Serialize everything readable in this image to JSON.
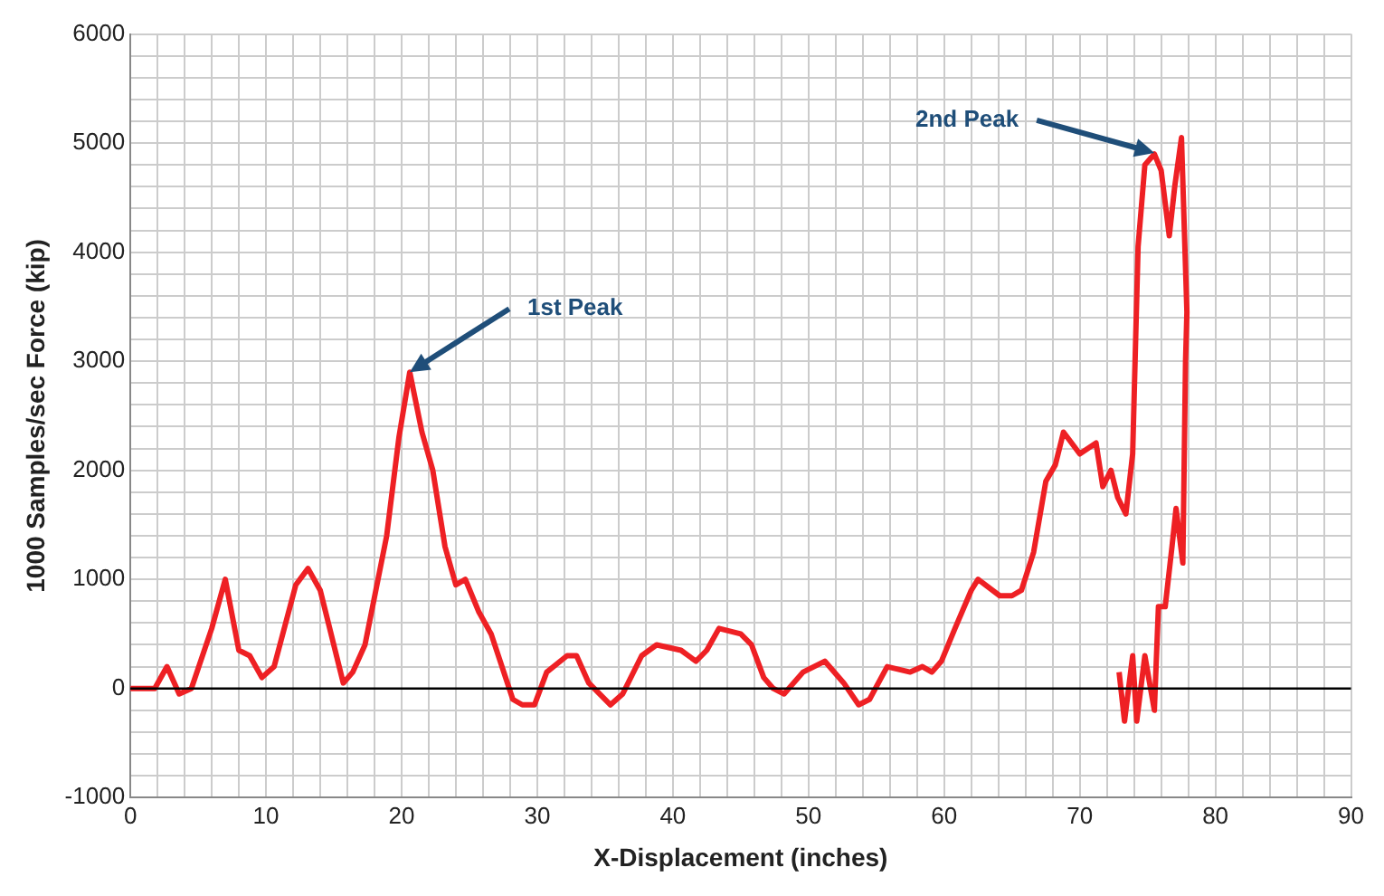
{
  "chart_data": {
    "type": "line",
    "xlabel": "X-Displacement (inches)",
    "ylabel": "1000 Samples/sec Force (kip)",
    "series": [
      {
        "color": "#ee2024",
        "x": [
          0,
          1.8,
          2.7,
          3.6,
          4.5,
          6.0,
          7.0,
          8.0,
          8.8,
          9.7,
          10.6,
          12.2,
          13.1,
          14.0,
          15.7,
          16.4,
          17.3,
          18.9,
          19.8,
          20.6,
          21.5,
          22.3,
          23.2,
          24.0,
          24.7,
          25.7,
          26.6,
          28.2,
          28.9,
          29.8,
          30.7,
          32.2,
          32.9,
          33.8,
          35.4,
          36.3,
          37.7,
          38.8,
          40.6,
          41.7,
          42.5,
          43.4,
          45.0,
          45.8,
          46.7,
          47.4,
          48.2,
          49.6,
          51.2,
          52.6,
          53.7,
          54.5,
          55.8,
          57.5,
          58.4,
          59.1,
          59.8,
          60.8,
          62.0,
          62.5,
          64.1,
          65.0,
          65.7,
          66.6,
          67.5,
          68.2,
          68.8,
          70.0,
          71.2,
          71.7,
          72.3,
          72.8,
          73.4,
          73.9,
          74.3,
          74.8,
          75.5,
          76.0,
          76.6,
          77.0,
          77.5,
          77.9,
          77.8,
          77.6,
          77.1,
          76.8,
          76.3,
          75.8,
          75.5,
          74.8,
          74.2,
          73.9,
          73.3,
          72.9
        ],
        "values": [
          0,
          0,
          200,
          -50,
          0,
          550,
          1000,
          350,
          300,
          100,
          200,
          950,
          1100,
          900,
          50,
          150,
          400,
          1400,
          2300,
          2900,
          2350,
          2000,
          1300,
          950,
          1000,
          700,
          500,
          -100,
          -150,
          -150,
          150,
          300,
          300,
          50,
          -150,
          -50,
          300,
          400,
          350,
          250,
          350,
          550,
          500,
          400,
          100,
          0,
          -50,
          150,
          250,
          50,
          -150,
          -100,
          200,
          150,
          200,
          150,
          250,
          550,
          900,
          1000,
          850,
          850,
          900,
          1250,
          1900,
          2050,
          2350,
          2150,
          2250,
          1850,
          2000,
          1750,
          1600,
          2150,
          4050,
          4800,
          4900,
          4750,
          4150,
          4600,
          5050,
          3450,
          3000,
          1150,
          1650,
          1300,
          750,
          750,
          -200,
          300,
          -300,
          300,
          -300,
          150
        ]
      }
    ],
    "xlim": [
      0,
      90
    ],
    "xticks": [
      0,
      {
        "value": 2,
        "label": null
      },
      {
        "value": 4,
        "label": null
      },
      {
        "value": 6,
        "label": null
      },
      {
        "value": 8,
        "label": null
      },
      10,
      {
        "value": 12,
        "label": null
      },
      {
        "value": 14,
        "label": null
      },
      {
        "value": 16,
        "label": null
      },
      {
        "value": 18,
        "label": null
      },
      20,
      {
        "value": 22,
        "label": null
      },
      {
        "value": 24,
        "label": null
      },
      {
        "value": 26,
        "label": null
      },
      {
        "value": 28,
        "label": null
      },
      30,
      {
        "value": 32,
        "label": null
      },
      {
        "value": 34,
        "label": null
      },
      {
        "value": 36,
        "label": null
      },
      {
        "value": 38,
        "label": null
      },
      40,
      {
        "value": 42,
        "label": null
      },
      {
        "value": 44,
        "label": null
      },
      {
        "value": 46,
        "label": null
      },
      {
        "value": 48,
        "label": null
      },
      50,
      {
        "value": 52,
        "label": null
      },
      {
        "value": 54,
        "label": null
      },
      {
        "value": 56,
        "label": null
      },
      {
        "value": 58,
        "label": null
      },
      60,
      {
        "value": 62,
        "label": null
      },
      {
        "value": 64,
        "label": null
      },
      {
        "value": 66,
        "label": null
      },
      {
        "value": 68,
        "label": null
      },
      70,
      {
        "value": 72,
        "label": null
      },
      {
        "value": 74,
        "label": null
      },
      {
        "value": 76,
        "label": null
      },
      {
        "value": 78,
        "label": null
      },
      80,
      {
        "value": 82,
        "label": null
      },
      {
        "value": 84,
        "label": null
      },
      {
        "value": 86,
        "label": null
      },
      {
        "value": 88,
        "label": null
      },
      90
    ],
    "ylim": [
      -1000,
      6000
    ],
    "yticks": [
      -1000,
      {
        "value": -800,
        "label": null
      },
      {
        "value": -600,
        "label": null
      },
      {
        "value": -400,
        "label": null
      },
      {
        "value": -200,
        "label": null
      },
      0,
      {
        "value": 200,
        "label": null
      },
      {
        "value": 400,
        "label": null
      },
      {
        "value": 600,
        "label": null
      },
      {
        "value": 800,
        "label": null
      },
      1000,
      {
        "value": 1200,
        "label": null
      },
      {
        "value": 1400,
        "label": null
      },
      {
        "value": 1600,
        "label": null
      },
      {
        "value": 1800,
        "label": null
      },
      2000,
      {
        "value": 2200,
        "label": null
      },
      {
        "value": 2400,
        "label": null
      },
      {
        "value": 2600,
        "label": null
      },
      {
        "value": 2800,
        "label": null
      },
      3000,
      {
        "value": 3200,
        "label": null
      },
      {
        "value": 3400,
        "label": null
      },
      {
        "value": 3600,
        "label": null
      },
      {
        "value": 3800,
        "label": null
      },
      4000,
      {
        "value": 4200,
        "label": null
      },
      {
        "value": 4400,
        "label": null
      },
      {
        "value": 4600,
        "label": null
      },
      {
        "value": 4800,
        "label": null
      },
      5000,
      {
        "value": 5200,
        "label": null
      },
      {
        "value": 5400,
        "label": null
      },
      {
        "value": 5600,
        "label": null
      },
      {
        "value": 5800,
        "label": null
      },
      6000
    ],
    "ref_lines": [
      {
        "axis": "y",
        "value": 0,
        "color": "#000000"
      }
    ],
    "annotations": [
      {
        "text": "1st Peak",
        "x": 20.6,
        "y": 2900
      },
      {
        "text": "2nd Peak",
        "x": 75.5,
        "y": 4910
      }
    ],
    "grid": true,
    "marker": "none",
    "line_style": "solid"
  }
}
